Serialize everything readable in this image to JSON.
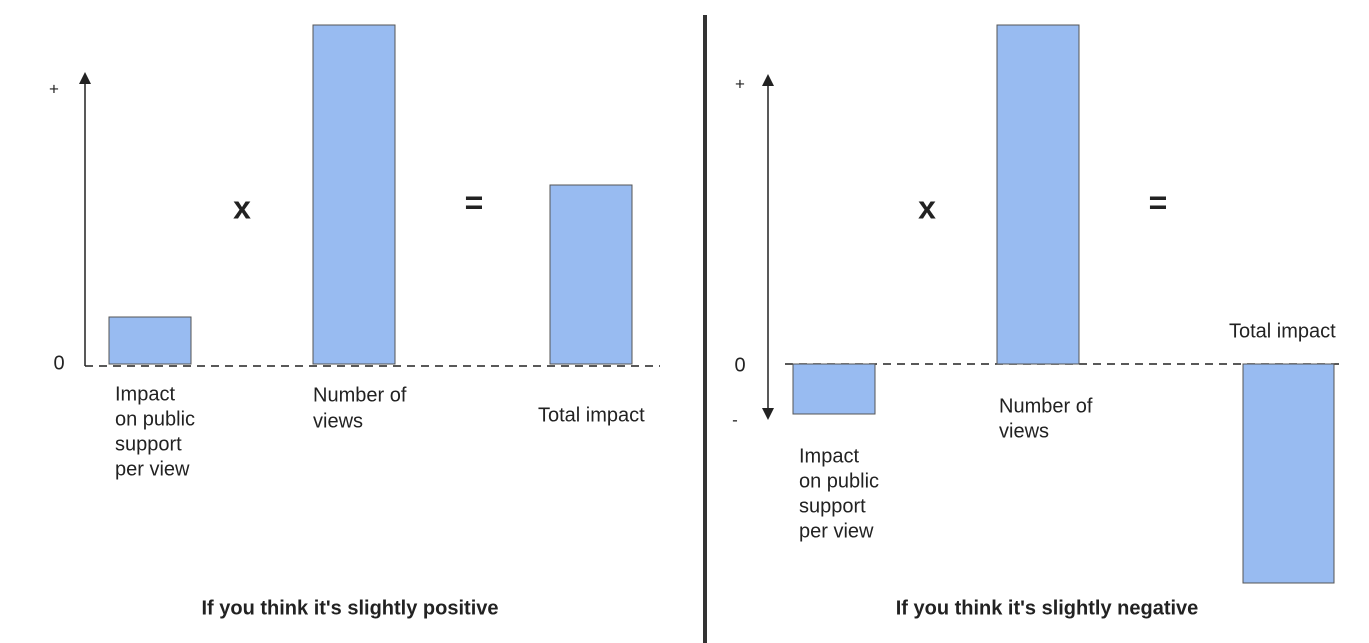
{
  "panels": [
    {
      "plus": "+",
      "zero": "0",
      "times": "x",
      "equals": "=",
      "impact_label": [
        "Impact",
        "on public",
        "support",
        "per view"
      ],
      "views_label": [
        "Number of",
        "views"
      ],
      "total_label": "Total impact",
      "caption": "If you think it's slightly positive"
    },
    {
      "plus": "+",
      "zero": "0",
      "minus": "-",
      "times": "x",
      "equals": "=",
      "impact_label": [
        "Impact",
        "on public",
        "support",
        "per view"
      ],
      "views_label": [
        "Number of",
        "views"
      ],
      "total_label": "Total impact",
      "caption": "If you think it's slightly negative"
    }
  ]
}
